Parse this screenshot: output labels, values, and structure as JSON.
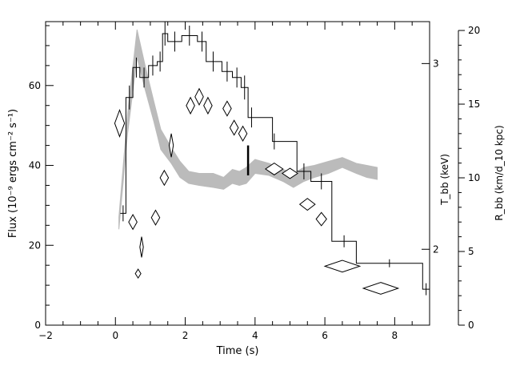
{
  "chart_data": {
    "type": "line",
    "xlabel": "Time (s)",
    "ylabel_left": "Flux (10⁻⁹ ergs cm⁻² s⁻¹)",
    "ylabel_mid": "T_bb (keV)",
    "ylabel_right": "R_bb (km/d_10 kpc)",
    "xlim": [
      -2,
      9
    ],
    "ylim_left": [
      0,
      76
    ],
    "ylim_right": [
      0,
      20.6
    ],
    "x_ticks": [
      -2,
      0,
      2,
      4,
      6,
      8
    ],
    "y_ticks_left": [
      0,
      20,
      40,
      60
    ],
    "y_ticks_right": [
      0,
      5,
      10,
      15,
      20
    ],
    "y_ticks_mid": [
      {
        "label": "3",
        "value": 3
      },
      {
        "label": "2",
        "value": 2
      }
    ],
    "flux_histogram": [
      {
        "x0": 0.15,
        "x1": 0.3,
        "y": 28
      },
      {
        "x0": 0.3,
        "x1": 0.5,
        "y": 57
      },
      {
        "x0": 0.5,
        "x1": 0.7,
        "y": 64.5
      },
      {
        "x0": 0.7,
        "x1": 0.95,
        "y": 62
      },
      {
        "x0": 0.95,
        "x1": 1.2,
        "y": 65
      },
      {
        "x0": 1.2,
        "x1": 1.35,
        "y": 66
      },
      {
        "x0": 1.35,
        "x1": 1.5,
        "y": 73
      },
      {
        "x0": 1.5,
        "x1": 1.9,
        "y": 71
      },
      {
        "x0": 1.9,
        "x1": 2.35,
        "y": 72.5
      },
      {
        "x0": 2.35,
        "x1": 2.6,
        "y": 71
      },
      {
        "x0": 2.6,
        "x1": 3.05,
        "y": 66
      },
      {
        "x0": 3.05,
        "x1": 3.35,
        "y": 63.5
      },
      {
        "x0": 3.35,
        "x1": 3.6,
        "y": 62
      },
      {
        "x0": 3.6,
        "x1": 3.8,
        "y": 59.5
      },
      {
        "x0": 3.8,
        "x1": 4.5,
        "y": 52
      },
      {
        "x0": 4.5,
        "x1": 5.2,
        "y": 46
      },
      {
        "x0": 5.2,
        "x1": 5.6,
        "y": 38.5
      },
      {
        "x0": 5.6,
        "x1": 6.2,
        "y": 36
      },
      {
        "x0": 6.2,
        "x1": 6.9,
        "y": 21
      },
      {
        "x0": 6.9,
        "x1": 8.8,
        "y": 15.5
      },
      {
        "x0": 8.8,
        "x1": 9.0,
        "y": 9
      }
    ],
    "flux_errors": [
      {
        "x": 0.22,
        "lo": 26,
        "hi": 30
      },
      {
        "x": 0.4,
        "lo": 54,
        "hi": 60
      },
      {
        "x": 0.6,
        "lo": 62,
        "hi": 67
      },
      {
        "x": 0.82,
        "lo": 59.5,
        "hi": 64.5
      },
      {
        "x": 1.07,
        "lo": 62.5,
        "hi": 67.5
      },
      {
        "x": 1.28,
        "lo": 63.5,
        "hi": 68.5
      },
      {
        "x": 1.42,
        "lo": 70,
        "hi": 76
      },
      {
        "x": 1.7,
        "lo": 68.5,
        "hi": 73.5
      },
      {
        "x": 2.12,
        "lo": 70,
        "hi": 75
      },
      {
        "x": 2.48,
        "lo": 68.5,
        "hi": 73.5
      },
      {
        "x": 2.8,
        "lo": 63.5,
        "hi": 68.5
      },
      {
        "x": 3.2,
        "lo": 61,
        "hi": 66
      },
      {
        "x": 3.48,
        "lo": 59.5,
        "hi": 64.5
      },
      {
        "x": 3.7,
        "lo": 56.5,
        "hi": 62.5
      },
      {
        "x": 3.9,
        "lo": 49.5,
        "hi": 54.5
      },
      {
        "x": 4.55,
        "lo": 44,
        "hi": 48
      },
      {
        "x": 5.4,
        "lo": 36.5,
        "hi": 40.5
      },
      {
        "x": 5.9,
        "lo": 34,
        "hi": 38
      },
      {
        "x": 6.55,
        "lo": 19.5,
        "hi": 22.5
      },
      {
        "x": 7.85,
        "lo": 14.5,
        "hi": 16.5
      },
      {
        "x": 8.9,
        "lo": 7.5,
        "hi": 10.5
      }
    ],
    "temperature_band": {
      "x": [
        0.1,
        0.35,
        0.62,
        0.85,
        1.1,
        1.3,
        1.6,
        1.85,
        2.1,
        2.4,
        2.8,
        3.1,
        3.35,
        3.55,
        3.75,
        4.0,
        4.4,
        4.8,
        5.1,
        5.4,
        5.7,
        6.1,
        6.5,
        6.9,
        7.2,
        7.5
      ],
      "lo": [
        24,
        48,
        67,
        59,
        51,
        44,
        40.5,
        37,
        35.5,
        35,
        34.5,
        34,
        35.5,
        35,
        35.5,
        38,
        37.5,
        36,
        34.5,
        36,
        37,
        38,
        39.5,
        38,
        37,
        36.5
      ],
      "hi": [
        27,
        53,
        74,
        65,
        56,
        49,
        44.5,
        41,
        38.5,
        38,
        38,
        37,
        39,
        38.5,
        39.5,
        41.5,
        40.5,
        39,
        38,
        39.5,
        40,
        41,
        42,
        40.5,
        40,
        39.5
      ]
    },
    "temperature_band_break": {
      "x": 3.8,
      "lo": 37.5,
      "hi": 45
    },
    "radius_diamonds": [
      {
        "x": 0.12,
        "y": 13.7,
        "dx": 0.14,
        "dy": 0.9
      },
      {
        "x": 0.5,
        "y": 7.0,
        "dx": 0.12,
        "dy": 0.5
      },
      {
        "x": 0.65,
        "y": 3.5,
        "dx": 0.08,
        "dy": 0.3
      },
      {
        "x": 0.75,
        "y": 5.3,
        "dx": 0.05,
        "dy": 0.7
      },
      {
        "x": 1.15,
        "y": 7.3,
        "dx": 0.12,
        "dy": 0.5
      },
      {
        "x": 1.4,
        "y": 10.0,
        "dx": 0.12,
        "dy": 0.5
      },
      {
        "x": 1.6,
        "y": 12.2,
        "dx": 0.06,
        "dy": 0.8
      },
      {
        "x": 2.15,
        "y": 14.9,
        "dx": 0.12,
        "dy": 0.55
      },
      {
        "x": 2.4,
        "y": 15.5,
        "dx": 0.12,
        "dy": 0.55
      },
      {
        "x": 2.65,
        "y": 14.9,
        "dx": 0.12,
        "dy": 0.55
      },
      {
        "x": 3.2,
        "y": 14.7,
        "dx": 0.12,
        "dy": 0.5
      },
      {
        "x": 3.4,
        "y": 13.4,
        "dx": 0.12,
        "dy": 0.5
      },
      {
        "x": 3.65,
        "y": 13.0,
        "dx": 0.12,
        "dy": 0.5
      },
      {
        "x": 4.55,
        "y": 10.6,
        "dx": 0.25,
        "dy": 0.4
      },
      {
        "x": 5.0,
        "y": 10.3,
        "dx": 0.22,
        "dy": 0.35
      },
      {
        "x": 5.5,
        "y": 8.2,
        "dx": 0.22,
        "dy": 0.4
      },
      {
        "x": 5.9,
        "y": 7.2,
        "dx": 0.15,
        "dy": 0.45
      },
      {
        "x": 6.5,
        "y": 4.0,
        "dx": 0.5,
        "dy": 0.4
      },
      {
        "x": 7.6,
        "y": 2.5,
        "dx": 0.5,
        "dy": 0.4
      }
    ],
    "colors": {
      "band": "#bbbbbb",
      "line": "#000000"
    }
  }
}
